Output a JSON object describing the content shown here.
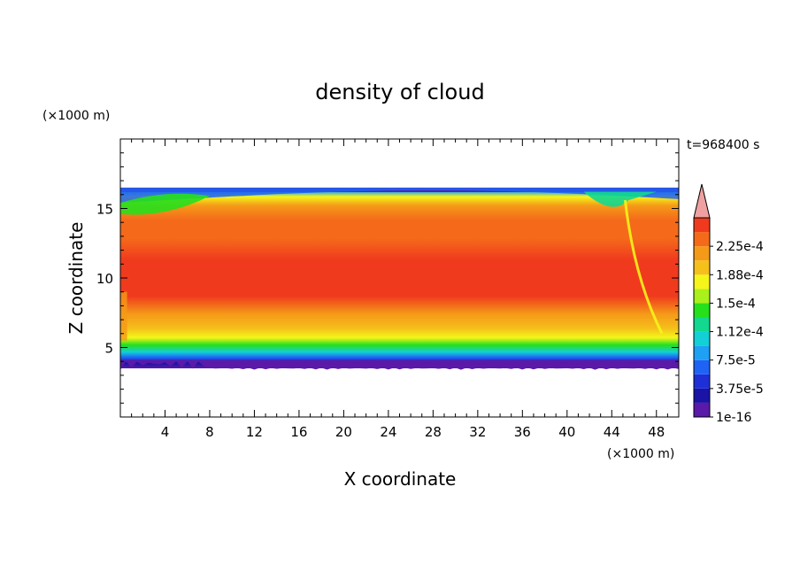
{
  "chart_data": {
    "type": "heatmap",
    "title": "density of cloud",
    "time_label": "t=968400 s",
    "xlabel": "X coordinate",
    "ylabel": "Z coordinate",
    "x_unit": "(×1000 m)",
    "y_unit": "(×1000 m)",
    "xlim": [
      0,
      50
    ],
    "ylim": [
      0,
      20
    ],
    "x_ticks": [
      "4",
      "8",
      "12",
      "16",
      "20",
      "24",
      "28",
      "32",
      "36",
      "40",
      "44",
      "48"
    ],
    "y_ticks": [
      "5",
      "10",
      "15"
    ],
    "colorbar": {
      "labels": [
        "1e-16",
        "3.75e-5",
        "7.5e-5",
        "1.12e-4",
        "1.5e-4",
        "1.88e-4",
        "2.25e-4"
      ],
      "levels": [
        1e-16,
        1.875e-05,
        3.75e-05,
        5.625e-05,
        7.5e-05,
        9.375e-05,
        0.0001125,
        0.00013125,
        0.00015,
        0.00016875,
        0.0001875,
        0.00020625,
        0.000225,
        0.00024375
      ],
      "colors": [
        "#5a19a8",
        "#1a13a5",
        "#1e2fd8",
        "#1f63f5",
        "#1ea0f5",
        "#12d0d6",
        "#12d890",
        "#26e01c",
        "#aaf01a",
        "#f5f51a",
        "#f5c01a",
        "#f59a18",
        "#f56a1a",
        "#f03a1e"
      ],
      "overflow_color": "#f0a0a0",
      "extend": "max"
    },
    "field": {
      "cloud_base_km": 3.5,
      "cloud_top_km": 16.5,
      "core_density": 0.000225
    }
  }
}
